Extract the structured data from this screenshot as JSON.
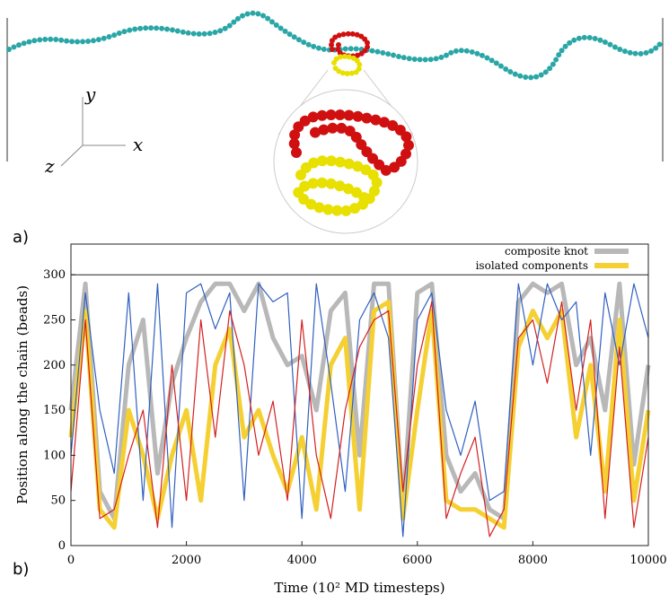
{
  "panel_a": {
    "label": "a)",
    "axis_x": "x",
    "axis_y": "y",
    "axis_z": "z"
  },
  "panel_b_label": "b)",
  "chart_data": {
    "type": "line",
    "x_label": "Time (10² MD timesteps)",
    "y_label": "Position along the chain (beads)",
    "xlim": [
      0,
      10000
    ],
    "ylim": [
      0,
      334
    ],
    "xticks": [
      0,
      2000,
      4000,
      6000,
      8000,
      10000
    ],
    "yticks": [
      0,
      50,
      100,
      150,
      200,
      250,
      300
    ],
    "reference_line": 300,
    "legend": "top-right",
    "x": [
      0,
      250,
      500,
      750,
      1000,
      1250,
      1500,
      1750,
      2000,
      2250,
      2500,
      2750,
      3000,
      3250,
      3500,
      3750,
      4000,
      4250,
      4500,
      4750,
      5000,
      5250,
      5500,
      5750,
      6000,
      6250,
      6500,
      6750,
      7000,
      7250,
      7500,
      7750,
      8000,
      8250,
      8500,
      8750,
      9000,
      9250,
      9500,
      9750,
      10000
    ],
    "series": [
      {
        "name": "composite knot",
        "color": "#b8b8b8",
        "width": 5,
        "legend": true,
        "values": [
          150,
          290,
          60,
          30,
          200,
          250,
          80,
          180,
          230,
          270,
          290,
          290,
          260,
          290,
          230,
          200,
          210,
          150,
          260,
          280,
          100,
          290,
          290,
          40,
          280,
          290,
          100,
          60,
          80,
          40,
          30,
          270,
          290,
          280,
          290,
          200,
          230,
          150,
          290,
          90,
          200
        ]
      },
      {
        "name": "isolated components",
        "color": "#f5d033",
        "width": 5,
        "legend": true,
        "values": [
          120,
          260,
          40,
          20,
          150,
          100,
          30,
          100,
          150,
          50,
          200,
          240,
          120,
          150,
          100,
          60,
          120,
          40,
          200,
          230,
          40,
          260,
          270,
          30,
          150,
          260,
          50,
          40,
          40,
          30,
          20,
          220,
          260,
          230,
          260,
          120,
          200,
          60,
          250,
          50,
          150
        ]
      },
      {
        "color": "#3060c0",
        "width": 1.2,
        "legend": false,
        "values": [
          100,
          280,
          150,
          80,
          280,
          50,
          290,
          20,
          280,
          290,
          240,
          280,
          50,
          290,
          270,
          280,
          30,
          290,
          180,
          60,
          250,
          280,
          230,
          10,
          250,
          280,
          150,
          100,
          160,
          50,
          60,
          290,
          200,
          290,
          250,
          270,
          100,
          280,
          200,
          290,
          230
        ]
      },
      {
        "color": "#d42020",
        "width": 1.2,
        "legend": false,
        "values": [
          60,
          250,
          30,
          40,
          100,
          150,
          20,
          200,
          50,
          250,
          120,
          260,
          200,
          100,
          160,
          50,
          250,
          100,
          30,
          150,
          220,
          250,
          260,
          60,
          200,
          270,
          30,
          80,
          120,
          10,
          40,
          230,
          250,
          180,
          270,
          150,
          250,
          30,
          220,
          20,
          120
        ]
      }
    ]
  }
}
